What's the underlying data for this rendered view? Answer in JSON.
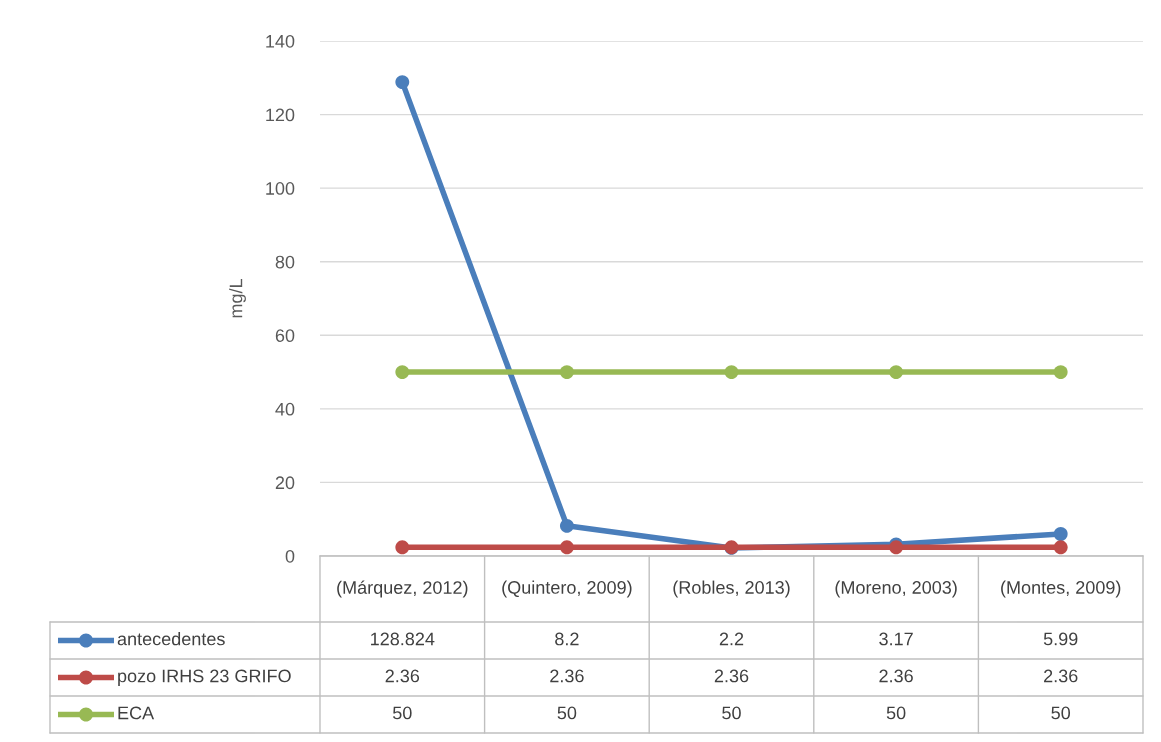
{
  "chart_data": {
    "type": "line",
    "ylabel": "mg/L",
    "categories": [
      "(Márquez, 2012)",
      "(Quintero, 2009)",
      "(Robles, 2013)",
      "(Moreno, 2003)",
      "(Montes, 2009)"
    ],
    "series": [
      {
        "name": "antecedentes",
        "color": "#4a7ebb",
        "values": [
          128.824,
          8.2,
          2.2,
          3.17,
          5.99
        ]
      },
      {
        "name": "pozo IRHS 23 GRIFO",
        "color": "#be4b48",
        "values": [
          2.36,
          2.36,
          2.36,
          2.36,
          2.36
        ]
      },
      {
        "name": "ECA",
        "color": "#98b954",
        "values": [
          50,
          50,
          50,
          50,
          50
        ]
      }
    ],
    "ylim": [
      0,
      140
    ],
    "yticks": [
      0,
      20,
      40,
      60,
      80,
      100,
      120,
      140
    ],
    "grid": "y",
    "legend": "bottom left",
    "marker": "circle",
    "line_style": "solid",
    "data_labels": true
  }
}
